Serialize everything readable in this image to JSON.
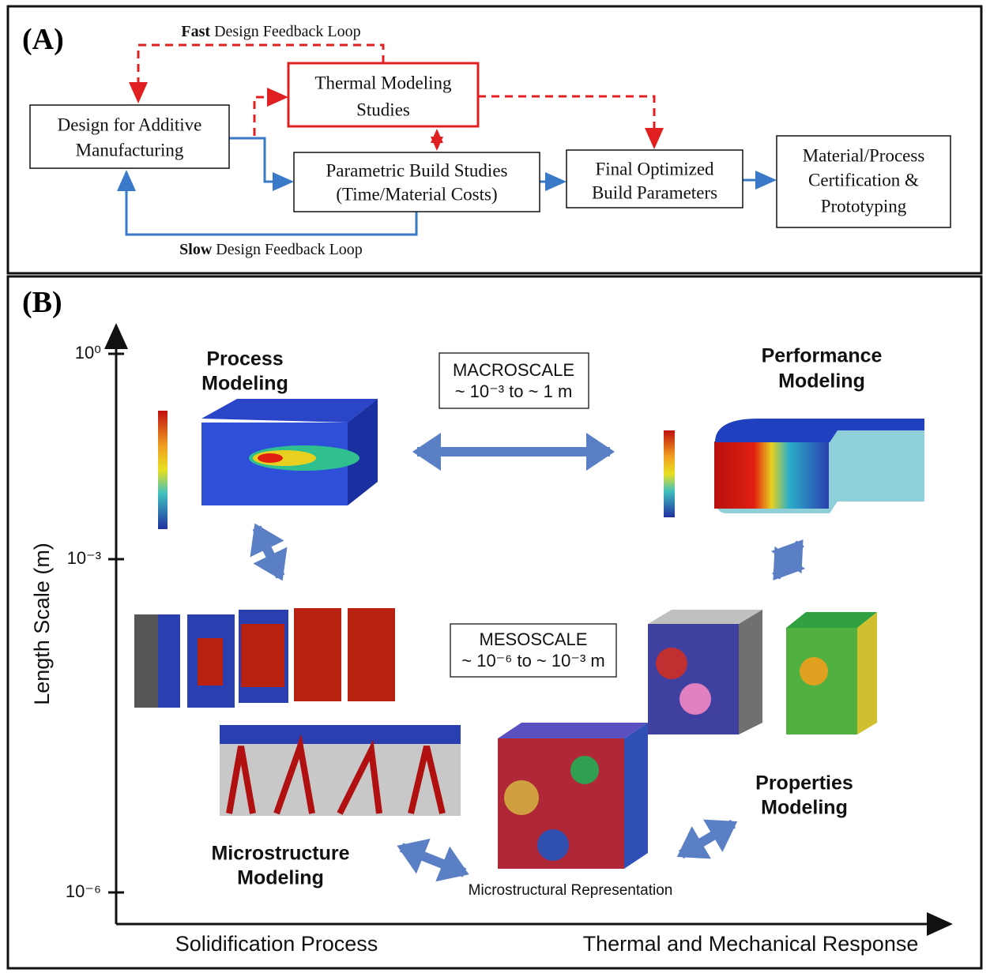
{
  "panel_a": {
    "label": "(A)",
    "fast_loop": {
      "bold": "Fast",
      "rest": "Design Feedback Loop"
    },
    "slow_loop": {
      "bold": "Slow",
      "rest": "Design Feedback Loop"
    },
    "nodes": [
      {
        "lines": [
          "Design for Additive",
          "Manufacturing"
        ]
      },
      {
        "lines": [
          "Thermal Modeling",
          "Studies"
        ]
      },
      {
        "lines": [
          "Parametric Build Studies",
          "(Time/Material Costs)"
        ]
      },
      {
        "lines": [
          "Final Optimized",
          "Build Parameters"
        ]
      },
      {
        "lines": [
          "Material/Process",
          "Certification &",
          "Prototyping"
        ]
      }
    ]
  },
  "panel_b": {
    "label": "(B)",
    "y_axis_label": "Length Scale (m)",
    "y_ticks": [
      "10⁰",
      "10⁻³",
      "10⁻⁶"
    ],
    "x_labels": [
      "Solidification Process",
      "Thermal and Mechanical Response"
    ],
    "scales": [
      {
        "lines": [
          "MACROSCALE",
          "~ 10⁻³ to ~ 1 m"
        ]
      },
      {
        "lines": [
          "MESOSCALE",
          "~ 10⁻⁶ to ~ 10⁻³ m"
        ]
      }
    ],
    "titles": [
      {
        "lines": [
          "Process",
          "Modeling"
        ]
      },
      {
        "lines": [
          "Performance",
          "Modeling"
        ]
      },
      {
        "lines": [
          "Microstructure",
          "Modeling"
        ]
      },
      {
        "lines": [
          "Properties",
          "Modeling"
        ]
      }
    ],
    "caption": "Microstructural Representation"
  }
}
